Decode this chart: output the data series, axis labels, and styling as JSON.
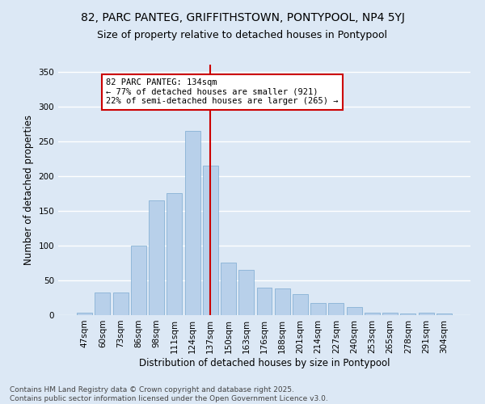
{
  "title_line1": "82, PARC PANTEG, GRIFFITHSTOWN, PONTYPOOL, NP4 5YJ",
  "title_line2": "Size of property relative to detached houses in Pontypool",
  "xlabel": "Distribution of detached houses by size in Pontypool",
  "ylabel": "Number of detached properties",
  "categories": [
    "47sqm",
    "60sqm",
    "73sqm",
    "86sqm",
    "98sqm",
    "111sqm",
    "124sqm",
    "137sqm",
    "150sqm",
    "163sqm",
    "176sqm",
    "188sqm",
    "201sqm",
    "214sqm",
    "227sqm",
    "240sqm",
    "253sqm",
    "265sqm",
    "278sqm",
    "291sqm",
    "304sqm"
  ],
  "bar_values": [
    4,
    32,
    32,
    100,
    165,
    175,
    265,
    215,
    75,
    65,
    40,
    38,
    30,
    17,
    17,
    12,
    4,
    4,
    2,
    4,
    2
  ],
  "bar_color": "#b8d0ea",
  "bar_edge_color": "#7aaad0",
  "vline_x_index": 7,
  "vline_color": "#cc0000",
  "annotation_text": "82 PARC PANTEG: 134sqm\n← 77% of detached houses are smaller (921)\n22% of semi-detached houses are larger (265) →",
  "annotation_box_color": "#ffffff",
  "annotation_box_edge_color": "#cc0000",
  "annotation_fontsize": 7.5,
  "ylim": [
    0,
    360
  ],
  "yticks": [
    0,
    50,
    100,
    150,
    200,
    250,
    300,
    350
  ],
  "background_color": "#dce8f5",
  "grid_color": "#ffffff",
  "footer_text": "Contains HM Land Registry data © Crown copyright and database right 2025.\nContains public sector information licensed under the Open Government Licence v3.0.",
  "title_fontsize": 10,
  "subtitle_fontsize": 9,
  "axis_label_fontsize": 8.5,
  "tick_fontsize": 7.5,
  "footer_fontsize": 6.5
}
